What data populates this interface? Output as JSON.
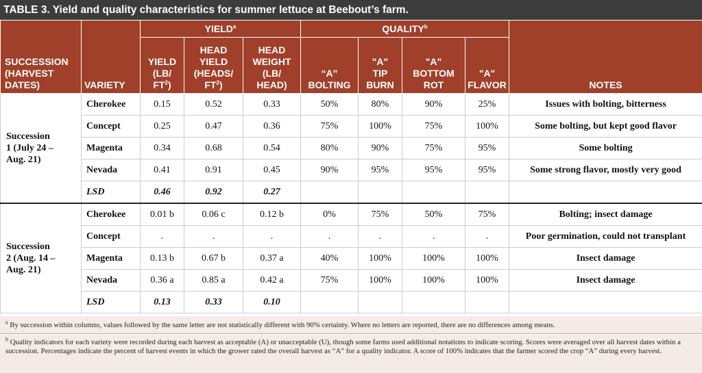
{
  "title": "TABLE 3. Yield and quality characteristics for summer lettuce at Beebout’s farm.",
  "headers": {
    "succession": "SUCCESSION (HARVEST DATES)",
    "variety": "VARIETY",
    "yield_group": "YIELD",
    "yield_group_sup": "a",
    "quality_group": "QUALITY",
    "quality_group_sup": "b",
    "notes": "NOTES",
    "yield_l1": "YIELD",
    "yield_l2": "(LB/",
    "yield_l3": "FT",
    "yield_l3_sup": "2",
    "yield_l3_end": ")",
    "head_yield_l1": "HEAD",
    "head_yield_l2": "YIELD",
    "head_yield_l3": "(HEADS/",
    "head_yield_l4": "FT",
    "head_yield_l4_sup": "2",
    "head_yield_l4_end": ")",
    "head_weight_l1": "HEAD",
    "head_weight_l2": "WEIGHT",
    "head_weight_l3": "(LB/",
    "head_weight_l4": "HEAD)",
    "bolting_l1": "“A”",
    "bolting_l2": "BOLTING",
    "tipburn_l1": "\"A\"",
    "tipburn_l2": "TIP",
    "tipburn_l3": "BURN",
    "bottomrot_l1": "\"A\"",
    "bottomrot_l2": "BOTTOM",
    "bottomrot_l3": "ROT",
    "flavor_l1": "\"A\"",
    "flavor_l2": "FLAVOR"
  },
  "successions": [
    {
      "label_l1": "Succession",
      "label_l2": "1 (July 24 –",
      "label_l3": "Aug. 21)",
      "rows": [
        {
          "variety": "Cherokee",
          "yield": "0.15",
          "head_yield": "0.52",
          "head_weight": "0.33",
          "bolting": "50%",
          "tip_burn": "80%",
          "bottom_rot": "90%",
          "flavor": "25%",
          "notes": "Issues with bolting, bitterness"
        },
        {
          "variety": "Concept",
          "yield": "0.25",
          "head_yield": "0.47",
          "head_weight": "0.36",
          "bolting": "75%",
          "tip_burn": "100%",
          "bottom_rot": "75%",
          "flavor": "100%",
          "notes": "Some bolting, but kept good flavor"
        },
        {
          "variety": "Magenta",
          "yield": "0.34",
          "head_yield": "0.68",
          "head_weight": "0.54",
          "bolting": "80%",
          "tip_burn": "90%",
          "bottom_rot": "75%",
          "flavor": "95%",
          "notes": "Some bolting"
        },
        {
          "variety": "Nevada",
          "yield": "0.41",
          "head_yield": "0.91",
          "head_weight": "0.45",
          "bolting": "90%",
          "tip_burn": "95%",
          "bottom_rot": "95%",
          "flavor": "95%",
          "notes": "Some strong flavor, mostly very good"
        }
      ],
      "lsd": {
        "label": "LSD",
        "yield": "0.46",
        "head_yield": "0.92",
        "head_weight": "0.27"
      }
    },
    {
      "label_l1": "Succession",
      "label_l2": "2 (Aug. 14 –",
      "label_l3": "Aug. 21)",
      "rows": [
        {
          "variety": "Cherokee",
          "yield": "0.01 b",
          "head_yield": "0.06 c",
          "head_weight": "0.12 b",
          "bolting": "0%",
          "tip_burn": "75%",
          "bottom_rot": "50%",
          "flavor": "75%",
          "notes": "Bolting; insect damage"
        },
        {
          "variety": "Concept",
          "yield": ".",
          "head_yield": ".",
          "head_weight": ".",
          "bolting": ".",
          "tip_burn": ".",
          "bottom_rot": ".",
          "flavor": ".",
          "notes": "Poor germination, could not transplant"
        },
        {
          "variety": "Magenta",
          "yield": "0.13 b",
          "head_yield": "0.67 b",
          "head_weight": "0.37 a",
          "bolting": "40%",
          "tip_burn": "100%",
          "bottom_rot": "100%",
          "flavor": "100%",
          "notes": "Insect damage"
        },
        {
          "variety": "Nevada",
          "yield": "0.36 a",
          "head_yield": "0.85 a",
          "head_weight": "0.42 a",
          "bolting": "75%",
          "tip_burn": "100%",
          "bottom_rot": "100%",
          "flavor": "100%",
          "notes": "Insect damage"
        }
      ],
      "lsd": {
        "label": "LSD",
        "yield": "0.13",
        "head_yield": "0.33",
        "head_weight": "0.10"
      }
    }
  ],
  "footnotes": {
    "a_mark": "a",
    "a_text": " By succession within columns, values followed by the same letter are not statistically different with 90% certainty. Where no letters are reported, there are no differences among means.",
    "b_mark": "b",
    "b_text": " Quality indicators for each variety were recorded during each harvest as acceptable (A) or unacceptable (U), though some farms used additional notations to indicate scoring.  Scores were averaged over all harvest dates within a succession. Percentages indicate the percent of harvest events in which the grower rated the overall harvest as “A” for a quality indicator. A score of 100% indicates that the farmer scored the crop “A” during every harvest."
  }
}
